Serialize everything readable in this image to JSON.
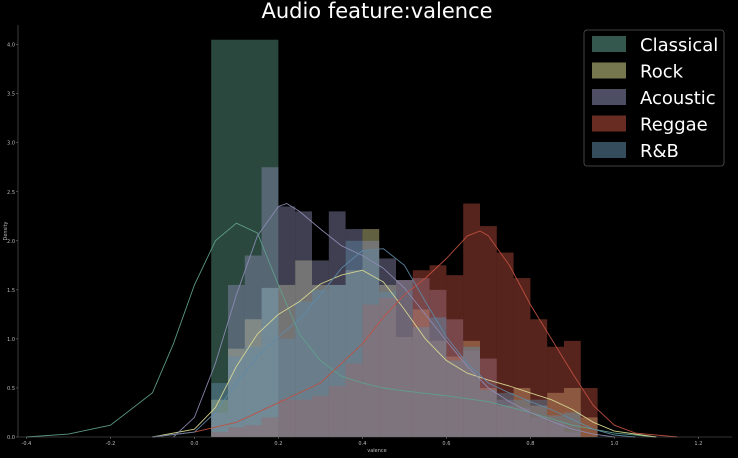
{
  "chart_data": {
    "type": "histogram",
    "title": "Audio feature:valence",
    "xlabel": "valence",
    "ylabel": "Density",
    "xlim": [
      -0.42,
      1.28
    ],
    "ylim": [
      0,
      4.2
    ],
    "xticks": [
      "-0.4",
      "-0.2",
      "0.0",
      "0.2",
      "0.4",
      "0.6",
      "0.8",
      "1.0",
      "1.2"
    ],
    "yticks": [
      "0.0",
      "0.5",
      "1.0",
      "1.5",
      "2.0",
      "2.5",
      "3.0",
      "3.5",
      "4.0"
    ],
    "grid": false,
    "legend_position": "top-right",
    "series": [
      {
        "name": "Classical",
        "color": "#5fa08c",
        "bins": [
          [
            0.04,
            0.2,
            4.05
          ]
        ],
        "kde": [
          [
            -0.4,
            0
          ],
          [
            -0.3,
            0.03
          ],
          [
            -0.2,
            0.12
          ],
          [
            -0.1,
            0.45
          ],
          [
            -0.05,
            0.95
          ],
          [
            0.0,
            1.55
          ],
          [
            0.05,
            2.0
          ],
          [
            0.1,
            2.18
          ],
          [
            0.15,
            2.08
          ],
          [
            0.2,
            1.55
          ],
          [
            0.25,
            1.05
          ],
          [
            0.3,
            0.78
          ],
          [
            0.35,
            0.62
          ],
          [
            0.4,
            0.55
          ],
          [
            0.45,
            0.5
          ],
          [
            0.5,
            0.47
          ],
          [
            0.6,
            0.42
          ],
          [
            0.7,
            0.36
          ],
          [
            0.8,
            0.25
          ],
          [
            0.9,
            0.12
          ],
          [
            1.0,
            0.04
          ],
          [
            1.1,
            0
          ]
        ]
      },
      {
        "name": "Rock",
        "color": "#d8d890",
        "bins": [
          [
            0.04,
            0.08,
            0.38
          ],
          [
            0.08,
            0.12,
            0.9
          ],
          [
            0.12,
            0.16,
            1.2
          ],
          [
            0.16,
            0.2,
            1.52
          ],
          [
            0.2,
            0.24,
            1.55
          ],
          [
            0.24,
            0.28,
            1.8
          ],
          [
            0.28,
            0.32,
            1.55
          ],
          [
            0.32,
            0.36,
            1.55
          ],
          [
            0.36,
            0.4,
            1.7
          ],
          [
            0.4,
            0.44,
            2.12
          ],
          [
            0.44,
            0.48,
            1.55
          ],
          [
            0.48,
            0.52,
            1.02
          ],
          [
            0.52,
            0.56,
            1.3
          ],
          [
            0.56,
            0.6,
            0.98
          ],
          [
            0.6,
            0.64,
            0.82
          ],
          [
            0.64,
            0.68,
            0.98
          ],
          [
            0.68,
            0.72,
            0.5
          ],
          [
            0.72,
            0.76,
            0.32
          ],
          [
            0.76,
            0.8,
            0.5
          ],
          [
            0.8,
            0.84,
            0.32
          ],
          [
            0.84,
            0.88,
            0.45
          ],
          [
            0.88,
            0.92,
            0.5
          ],
          [
            0.92,
            0.96,
            0.2
          ]
        ],
        "kde": [
          [
            -0.1,
            0
          ],
          [
            0.0,
            0.08
          ],
          [
            0.05,
            0.3
          ],
          [
            0.1,
            0.72
          ],
          [
            0.15,
            1.05
          ],
          [
            0.2,
            1.25
          ],
          [
            0.25,
            1.38
          ],
          [
            0.3,
            1.56
          ],
          [
            0.35,
            1.65
          ],
          [
            0.4,
            1.7
          ],
          [
            0.45,
            1.58
          ],
          [
            0.5,
            1.3
          ],
          [
            0.55,
            1.0
          ],
          [
            0.6,
            0.78
          ],
          [
            0.65,
            0.65
          ],
          [
            0.7,
            0.58
          ],
          [
            0.75,
            0.52
          ],
          [
            0.8,
            0.45
          ],
          [
            0.85,
            0.38
          ],
          [
            0.9,
            0.28
          ],
          [
            0.95,
            0.15
          ],
          [
            1.0,
            0.06
          ],
          [
            1.1,
            0
          ]
        ]
      },
      {
        "name": "Acoustic",
        "color": "#8c8cb4",
        "bins": [
          [
            0.04,
            0.08,
            0.25
          ],
          [
            0.08,
            0.12,
            1.55
          ],
          [
            0.12,
            0.16,
            1.85
          ],
          [
            0.16,
            0.2,
            2.75
          ],
          [
            0.2,
            0.24,
            2.35
          ],
          [
            0.24,
            0.28,
            2.3
          ],
          [
            0.28,
            0.32,
            1.8
          ],
          [
            0.32,
            0.36,
            2.3
          ],
          [
            0.36,
            0.4,
            2.12
          ],
          [
            0.4,
            0.44,
            2.0
          ],
          [
            0.44,
            0.48,
            1.82
          ],
          [
            0.48,
            0.52,
            1.6
          ],
          [
            0.52,
            0.56,
            1.62
          ],
          [
            0.56,
            0.6,
            1.5
          ],
          [
            0.6,
            0.64,
            1.2
          ],
          [
            0.64,
            0.68,
            0.88
          ],
          [
            0.68,
            0.72,
            0.8
          ],
          [
            0.72,
            0.76,
            0.38
          ],
          [
            0.76,
            0.8,
            0.3
          ],
          [
            0.8,
            0.84,
            0.2
          ],
          [
            0.84,
            0.88,
            0.15
          ],
          [
            0.88,
            0.92,
            0.05
          ]
        ],
        "kde": [
          [
            -0.05,
            0
          ],
          [
            0.0,
            0.2
          ],
          [
            0.05,
            0.75
          ],
          [
            0.1,
            1.45
          ],
          [
            0.15,
            2.05
          ],
          [
            0.2,
            2.35
          ],
          [
            0.22,
            2.38
          ],
          [
            0.25,
            2.3
          ],
          [
            0.3,
            2.12
          ],
          [
            0.35,
            1.95
          ],
          [
            0.4,
            1.85
          ],
          [
            0.45,
            1.72
          ],
          [
            0.5,
            1.52
          ],
          [
            0.55,
            1.25
          ],
          [
            0.6,
            0.98
          ],
          [
            0.65,
            0.72
          ],
          [
            0.7,
            0.5
          ],
          [
            0.75,
            0.36
          ],
          [
            0.8,
            0.25
          ],
          [
            0.85,
            0.16
          ],
          [
            0.9,
            0.08
          ],
          [
            0.95,
            0.03
          ],
          [
            1.0,
            0
          ]
        ]
      },
      {
        "name": "Reggae",
        "color": "#c05040",
        "bins": [
          [
            0.04,
            0.08,
            0.05
          ],
          [
            0.08,
            0.12,
            0.1
          ],
          [
            0.12,
            0.16,
            0.12
          ],
          [
            0.16,
            0.2,
            0.2
          ],
          [
            0.2,
            0.24,
            0.38
          ],
          [
            0.24,
            0.28,
            0.38
          ],
          [
            0.28,
            0.32,
            0.42
          ],
          [
            0.32,
            0.36,
            0.52
          ],
          [
            0.36,
            0.4,
            0.75
          ],
          [
            0.4,
            0.44,
            1.35
          ],
          [
            0.44,
            0.48,
            1.42
          ],
          [
            0.48,
            0.52,
            1.6
          ],
          [
            0.52,
            0.56,
            1.7
          ],
          [
            0.56,
            0.6,
            1.75
          ],
          [
            0.6,
            0.64,
            1.65
          ],
          [
            0.64,
            0.68,
            2.38
          ],
          [
            0.68,
            0.72,
            2.15
          ],
          [
            0.72,
            0.76,
            1.88
          ],
          [
            0.76,
            0.8,
            1.62
          ],
          [
            0.8,
            0.84,
            1.2
          ],
          [
            0.84,
            0.88,
            0.92
          ],
          [
            0.88,
            0.92,
            0.98
          ],
          [
            0.92,
            0.96,
            0.5
          ]
        ],
        "kde": [
          [
            -0.1,
            0
          ],
          [
            0.0,
            0.05
          ],
          [
            0.1,
            0.15
          ],
          [
            0.2,
            0.35
          ],
          [
            0.3,
            0.55
          ],
          [
            0.4,
            0.95
          ],
          [
            0.45,
            1.22
          ],
          [
            0.5,
            1.45
          ],
          [
            0.55,
            1.62
          ],
          [
            0.6,
            1.82
          ],
          [
            0.65,
            2.05
          ],
          [
            0.68,
            2.1
          ],
          [
            0.7,
            2.05
          ],
          [
            0.75,
            1.75
          ],
          [
            0.8,
            1.35
          ],
          [
            0.85,
            1.0
          ],
          [
            0.9,
            0.65
          ],
          [
            0.95,
            0.32
          ],
          [
            1.0,
            0.12
          ],
          [
            1.05,
            0.04
          ],
          [
            1.15,
            0
          ]
        ]
      },
      {
        "name": "R&B",
        "color": "#5f8aa8",
        "bins": [
          [
            0.04,
            0.08,
            0.55
          ],
          [
            0.08,
            0.12,
            0.82
          ],
          [
            0.12,
            0.16,
            0.92
          ],
          [
            0.16,
            0.2,
            1.52
          ],
          [
            0.2,
            0.24,
            1.0
          ],
          [
            0.24,
            0.28,
            1.38
          ],
          [
            0.28,
            0.32,
            1.5
          ],
          [
            0.32,
            0.36,
            1.55
          ],
          [
            0.36,
            0.4,
            2.0
          ],
          [
            0.4,
            0.44,
            1.9
          ],
          [
            0.44,
            0.48,
            1.48
          ],
          [
            0.48,
            0.52,
            1.6
          ],
          [
            0.52,
            0.56,
            1.12
          ],
          [
            0.56,
            0.6,
            1.22
          ],
          [
            0.6,
            0.64,
            0.78
          ],
          [
            0.64,
            0.68,
            0.92
          ],
          [
            0.68,
            0.72,
            0.48
          ],
          [
            0.72,
            0.76,
            0.45
          ],
          [
            0.76,
            0.8,
            0.38
          ],
          [
            0.8,
            0.84,
            0.38
          ],
          [
            0.84,
            0.88,
            0.22
          ],
          [
            0.88,
            0.92,
            0.25
          ]
        ],
        "kde": [
          [
            -0.1,
            0
          ],
          [
            0.0,
            0.05
          ],
          [
            0.05,
            0.25
          ],
          [
            0.1,
            0.55
          ],
          [
            0.15,
            0.82
          ],
          [
            0.2,
            1.02
          ],
          [
            0.25,
            1.2
          ],
          [
            0.3,
            1.45
          ],
          [
            0.35,
            1.72
          ],
          [
            0.4,
            1.9
          ],
          [
            0.45,
            1.92
          ],
          [
            0.5,
            1.75
          ],
          [
            0.55,
            1.38
          ],
          [
            0.6,
            1.02
          ],
          [
            0.65,
            0.75
          ],
          [
            0.7,
            0.55
          ],
          [
            0.75,
            0.45
          ],
          [
            0.8,
            0.36
          ],
          [
            0.85,
            0.28
          ],
          [
            0.9,
            0.18
          ],
          [
            0.95,
            0.08
          ],
          [
            1.0,
            0.02
          ],
          [
            1.05,
            0
          ]
        ]
      }
    ]
  }
}
